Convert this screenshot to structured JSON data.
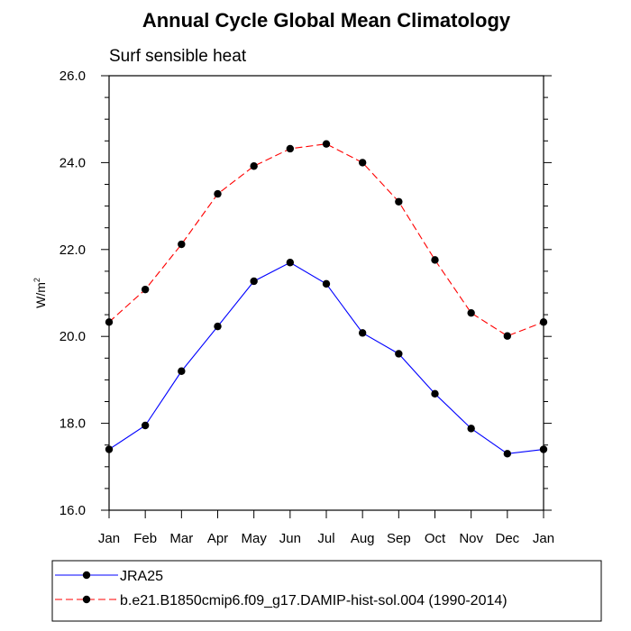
{
  "chart_data": {
    "type": "line",
    "title": "Annual Cycle Global Mean Climatology",
    "subtitle": "Surf sensible heat",
    "xlabel": "",
    "ylabel_base": "W/m",
    "ylabel_sup": "2",
    "categories": [
      "Jan",
      "Feb",
      "Mar",
      "Apr",
      "May",
      "Jun",
      "Jul",
      "Aug",
      "Sep",
      "Oct",
      "Nov",
      "Dec",
      "Jan"
    ],
    "ylim": [
      16.0,
      26.0
    ],
    "yticks": [
      "16.0",
      "18.0",
      "20.0",
      "22.0",
      "24.0",
      "26.0"
    ],
    "ytick_values": [
      16,
      18,
      20,
      22,
      24,
      26
    ],
    "grid": false,
    "legend_position": "bottom",
    "series": [
      {
        "name": "JRA25",
        "color": "#0000ff",
        "dash": "solid",
        "values": [
          17.4,
          17.95,
          19.2,
          20.23,
          21.27,
          21.7,
          21.21,
          20.08,
          19.6,
          18.68,
          17.88,
          17.3,
          17.4
        ]
      },
      {
        "name": "b.e21.B1850cmip6.f09_g17.DAMIP-hist-sol.004 (1990-2014)",
        "color": "#ff0000",
        "dash": "dashed",
        "values": [
          20.33,
          21.08,
          22.12,
          23.28,
          23.92,
          24.32,
          24.43,
          24.0,
          23.1,
          21.76,
          20.54,
          20.01,
          20.33
        ]
      }
    ]
  }
}
